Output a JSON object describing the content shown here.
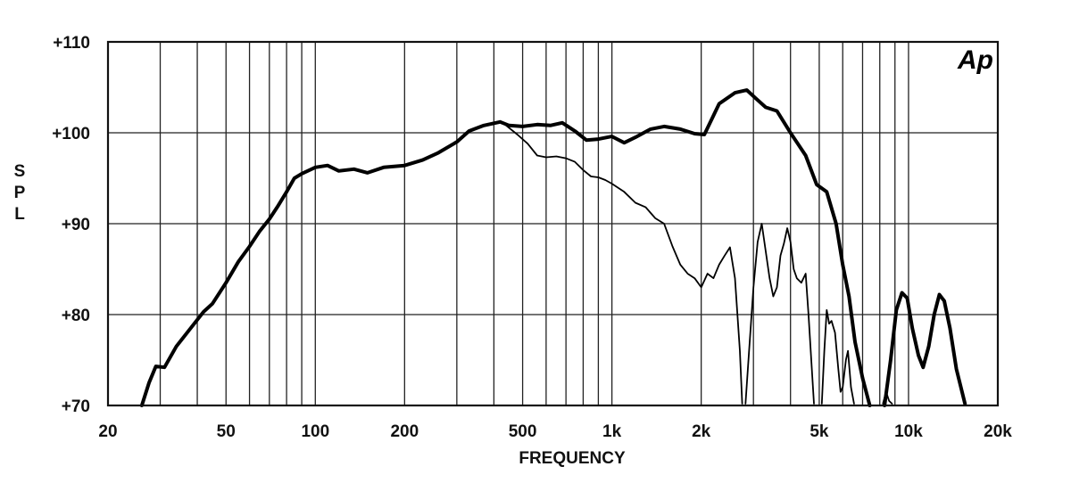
{
  "chart_data": {
    "type": "line",
    "title": "",
    "xlabel": "FREQUENCY",
    "ylabel": "SPL",
    "logo_text": "Ap",
    "x_scale": "log",
    "xlim": [
      20,
      20000
    ],
    "ylim": [
      70,
      110
    ],
    "x_ticks": [
      {
        "value": 20,
        "label": "20"
      },
      {
        "value": 50,
        "label": "50"
      },
      {
        "value": 100,
        "label": "100"
      },
      {
        "value": 200,
        "label": "200"
      },
      {
        "value": 500,
        "label": "500"
      },
      {
        "value": 1000,
        "label": "1k"
      },
      {
        "value": 2000,
        "label": "2k"
      },
      {
        "value": 5000,
        "label": "5k"
      },
      {
        "value": 10000,
        "label": "10k"
      },
      {
        "value": 20000,
        "label": "20k"
      }
    ],
    "y_ticks": [
      {
        "value": 70,
        "label": "+70"
      },
      {
        "value": 80,
        "label": "+80"
      },
      {
        "value": 90,
        "label": "+90"
      },
      {
        "value": 100,
        "label": "+100"
      },
      {
        "value": 110,
        "label": "+110"
      }
    ],
    "grid": true,
    "series": [
      {
        "style": "thick",
        "points": [
          [
            26,
            70
          ],
          [
            27.5,
            72.5
          ],
          [
            29,
            74.3
          ],
          [
            31,
            74.2
          ],
          [
            34,
            76.5
          ],
          [
            38,
            78.5
          ],
          [
            42,
            80.3
          ],
          [
            45,
            81.2
          ],
          [
            50,
            83.5
          ],
          [
            55,
            85.8
          ],
          [
            60,
            87.5
          ],
          [
            65,
            89.2
          ],
          [
            70,
            90.5
          ],
          [
            75,
            92
          ],
          [
            80,
            93.5
          ],
          [
            85,
            95
          ],
          [
            90,
            95.5
          ],
          [
            100,
            96.2
          ],
          [
            110,
            96.4
          ],
          [
            120,
            95.8
          ],
          [
            135,
            96
          ],
          [
            150,
            95.6
          ],
          [
            170,
            96.2
          ],
          [
            200,
            96.4
          ],
          [
            230,
            97
          ],
          [
            260,
            97.8
          ],
          [
            300,
            99
          ],
          [
            330,
            100.2
          ],
          [
            370,
            100.8
          ],
          [
            420,
            101.2
          ],
          [
            450,
            100.8
          ],
          [
            500,
            100.7
          ],
          [
            560,
            100.9
          ],
          [
            620,
            100.8
          ],
          [
            680,
            101.1
          ],
          [
            750,
            100.2
          ],
          [
            820,
            99.2
          ],
          [
            900,
            99.3
          ],
          [
            1000,
            99.6
          ],
          [
            1100,
            98.9
          ],
          [
            1200,
            99.5
          ],
          [
            1350,
            100.4
          ],
          [
            1500,
            100.7
          ],
          [
            1700,
            100.4
          ],
          [
            1900,
            99.9
          ],
          [
            2050,
            99.8
          ],
          [
            2300,
            103.2
          ],
          [
            2600,
            104.4
          ],
          [
            2850,
            104.7
          ],
          [
            3050,
            103.8
          ],
          [
            3300,
            102.8
          ],
          [
            3600,
            102.4
          ],
          [
            4000,
            100
          ],
          [
            4500,
            97.5
          ],
          [
            4900,
            94.3
          ],
          [
            5300,
            93.5
          ],
          [
            5700,
            90
          ],
          [
            6000,
            85.5
          ],
          [
            6300,
            82
          ],
          [
            6600,
            77
          ],
          [
            7000,
            73
          ],
          [
            7400,
            70
          ]
        ]
      },
      {
        "style": "thick",
        "points": [
          [
            8300,
            70
          ],
          [
            8700,
            75
          ],
          [
            9100,
            80.5
          ],
          [
            9500,
            82.4
          ],
          [
            9900,
            81.8
          ],
          [
            10300,
            78.5
          ],
          [
            10800,
            75.5
          ],
          [
            11200,
            74.2
          ],
          [
            11700,
            76.5
          ],
          [
            12200,
            80
          ],
          [
            12700,
            82.2
          ],
          [
            13200,
            81.5
          ],
          [
            13800,
            78.5
          ],
          [
            14500,
            74
          ],
          [
            15500,
            70.2
          ]
        ]
      },
      {
        "style": "thin",
        "points": [
          [
            440,
            100.8
          ],
          [
            480,
            99.8
          ],
          [
            520,
            98.8
          ],
          [
            560,
            97.5
          ],
          [
            600,
            97.3
          ],
          [
            650,
            97.4
          ],
          [
            700,
            97.2
          ],
          [
            750,
            96.8
          ],
          [
            800,
            95.9
          ],
          [
            850,
            95.2
          ],
          [
            900,
            95.1
          ],
          [
            950,
            94.8
          ],
          [
            1000,
            94.4
          ],
          [
            1100,
            93.5
          ],
          [
            1200,
            92.3
          ],
          [
            1300,
            91.8
          ],
          [
            1400,
            90.6
          ],
          [
            1500,
            90
          ],
          [
            1600,
            87.5
          ],
          [
            1700,
            85.5
          ],
          [
            1800,
            84.5
          ],
          [
            1900,
            84
          ],
          [
            2000,
            83
          ],
          [
            2100,
            84.5
          ],
          [
            2200,
            84
          ],
          [
            2300,
            85.5
          ],
          [
            2400,
            86.5
          ],
          [
            2500,
            87.4
          ],
          [
            2600,
            84
          ],
          [
            2700,
            76
          ],
          [
            2750,
            70.2
          ]
        ]
      },
      {
        "style": "thin",
        "points": [
          [
            2820,
            70.2
          ],
          [
            2900,
            76
          ],
          [
            3000,
            83
          ],
          [
            3100,
            88
          ],
          [
            3200,
            90
          ],
          [
            3300,
            87
          ],
          [
            3400,
            84
          ],
          [
            3500,
            82
          ],
          [
            3600,
            83
          ],
          [
            3700,
            86.5
          ],
          [
            3800,
            87.8
          ],
          [
            3900,
            89.5
          ],
          [
            4000,
            88
          ],
          [
            4100,
            85
          ],
          [
            4200,
            84
          ],
          [
            4350,
            83.5
          ],
          [
            4500,
            84.5
          ],
          [
            4600,
            80
          ],
          [
            4700,
            75
          ],
          [
            4800,
            70.2
          ]
        ]
      },
      {
        "style": "thin",
        "points": [
          [
            5100,
            70.2
          ],
          [
            5200,
            76
          ],
          [
            5300,
            80.5
          ],
          [
            5400,
            79
          ],
          [
            5500,
            79.3
          ],
          [
            5650,
            78
          ],
          [
            5800,
            74
          ],
          [
            5900,
            71.5
          ],
          [
            6000,
            72
          ],
          [
            6150,
            75
          ],
          [
            6250,
            76
          ],
          [
            6400,
            72
          ],
          [
            6550,
            70.2
          ]
        ]
      },
      {
        "style": "thin",
        "points": [
          [
            8200,
            70.2
          ],
          [
            8400,
            71.5
          ],
          [
            8600,
            70.5
          ],
          [
            8800,
            70.2
          ]
        ]
      }
    ]
  }
}
